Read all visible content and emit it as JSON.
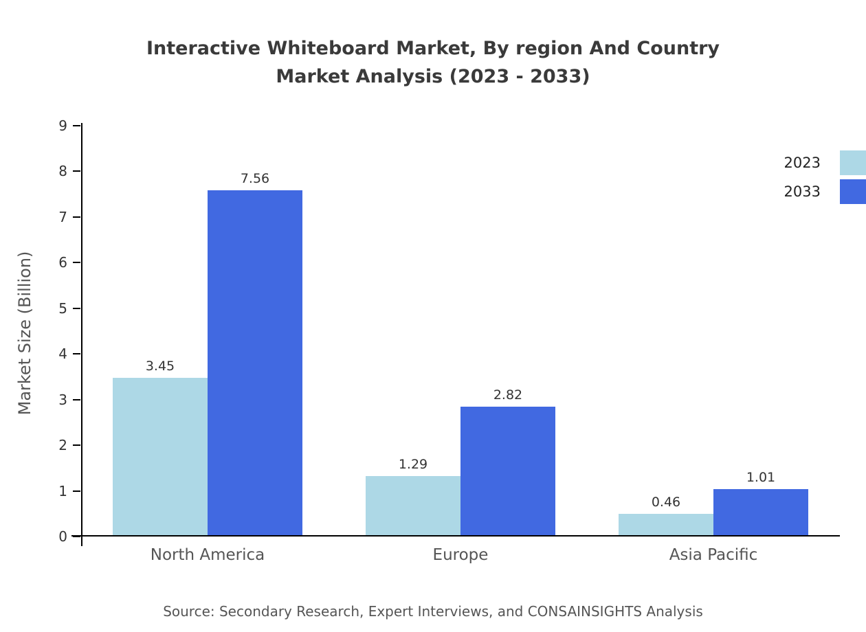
{
  "title": {
    "line1": "Interactive Whiteboard Market, By region And Country",
    "line2": "Market Analysis (2023 - 2033)"
  },
  "chart_data": {
    "type": "bar",
    "categories": [
      "North America",
      "Europe",
      "Asia Pacific"
    ],
    "series": [
      {
        "name": "2023",
        "color": "#add8e6",
        "values": [
          3.45,
          1.29,
          0.46
        ]
      },
      {
        "name": "2033",
        "color": "#4169e1",
        "values": [
          7.56,
          2.82,
          1.01
        ]
      }
    ],
    "title": "Interactive Whiteboard Market, By region And Country Market Analysis (2023 - 2033)",
    "xlabel": "",
    "ylabel": "Market Size (Billion)",
    "ylim": [
      0,
      9
    ],
    "ytick_step": 1,
    "grid": false,
    "legend_position": "top-right",
    "value_labels": true
  },
  "source": "Source: Secondary Research, Expert Interviews, and CONSAINSIGHTS Analysis"
}
